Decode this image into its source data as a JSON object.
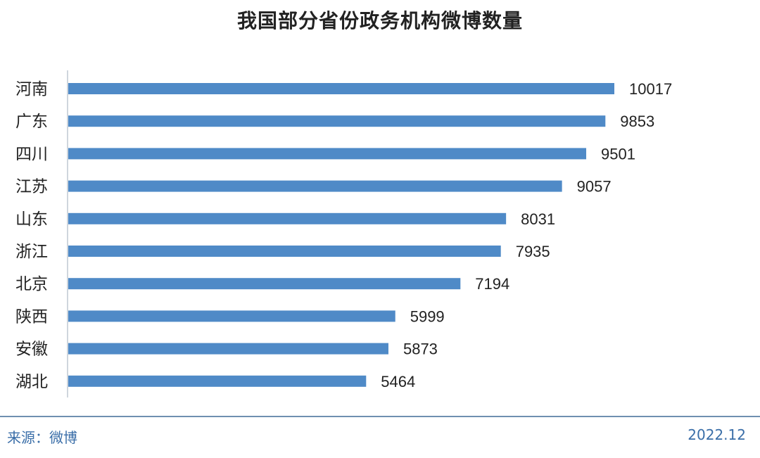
{
  "chart_data": {
    "type": "bar",
    "orientation": "horizontal",
    "title": "我国部分省份政务机构微博数量",
    "categories": [
      "河南",
      "广东",
      "四川",
      "江苏",
      "山东",
      "浙江",
      "北京",
      "陕西",
      "安徽",
      "湖北"
    ],
    "values": [
      10017,
      9853,
      9501,
      9057,
      8031,
      7935,
      7194,
      5999,
      5873,
      5464
    ],
    "xlim": [
      0,
      10017
    ],
    "grid": false,
    "bar_color": "#4f8ac7",
    "axis_color": "#bfc8d2"
  },
  "footer": {
    "source": "来源：微博",
    "date": "2022.12"
  }
}
